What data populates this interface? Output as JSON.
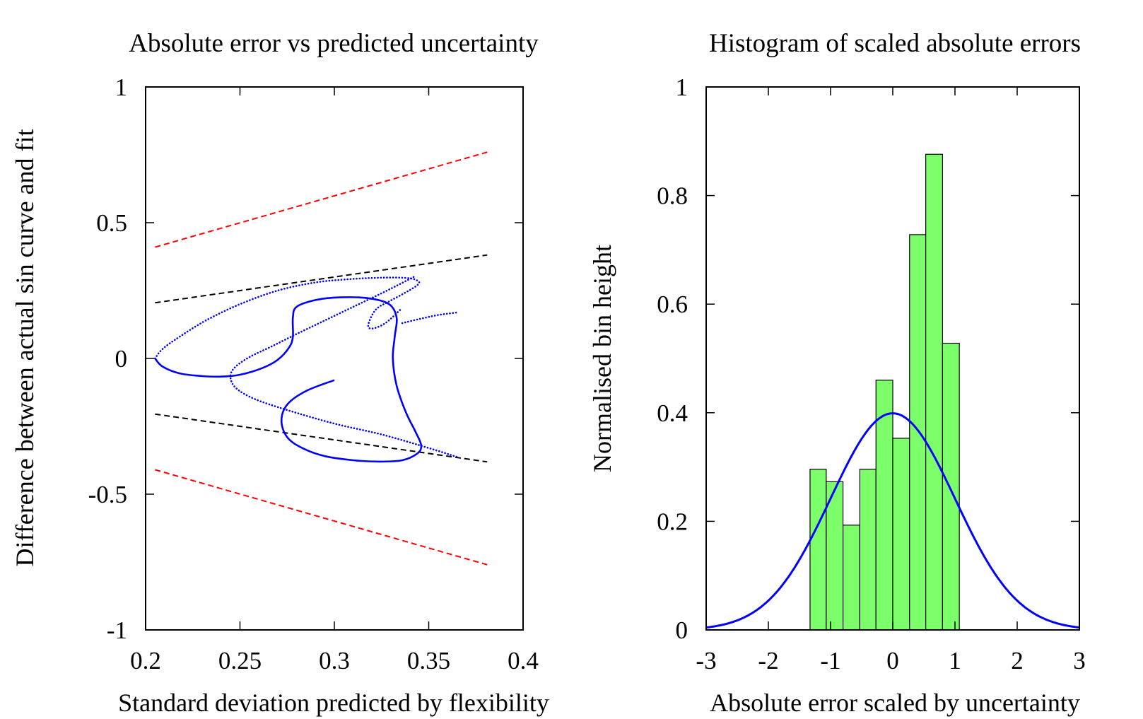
{
  "chart_data": [
    {
      "type": "line",
      "title": "Absolute error vs predicted uncertainty",
      "xlabel": "Standard deviation predicted by flexibility",
      "ylabel": "Difference between actual sin curve and fit",
      "xlim": [
        0.2,
        0.4
      ],
      "ylim": [
        -1,
        1
      ],
      "xticks": [
        "0.2",
        "0.25",
        "0.3",
        "0.35",
        "0.4"
      ],
      "yticks": [
        "-1",
        "-0.5",
        "0",
        "0.5",
        "1"
      ],
      "grid": false,
      "legend": "none",
      "lines": [
        {
          "color": "#ff0000",
          "style": "dashed",
          "x": [
            0.205,
            0.381
          ],
          "y": [
            0.41,
            0.76
          ]
        },
        {
          "color": "#ff0000",
          "style": "dashed",
          "x": [
            0.205,
            0.381
          ],
          "y": [
            -0.41,
            -0.76
          ]
        },
        {
          "color": "#000000",
          "style": "dashed",
          "x": [
            0.205,
            0.381
          ],
          "y": [
            0.205,
            0.381
          ]
        },
        {
          "color": "#000000",
          "style": "dashed",
          "x": [
            0.205,
            0.381
          ],
          "y": [
            -0.205,
            -0.381
          ]
        }
      ],
      "series": [
        {
          "color": "#0000ff",
          "style": "solid",
          "x": [
            0.205,
            0.209,
            0.218,
            0.23,
            0.24,
            0.25,
            0.262,
            0.27,
            0.276,
            0.278,
            0.278,
            0.28,
            0.29,
            0.303,
            0.318,
            0.329,
            0.333,
            0.332,
            0.331,
            0.333,
            0.338,
            0.343,
            0.346,
            0.344,
            0.336,
            0.324,
            0.31,
            0.295,
            0.283,
            0.275,
            0.272,
            0.275,
            0.285,
            0.3
          ],
          "y": [
            0.0,
            -0.03,
            -0.055,
            -0.065,
            -0.067,
            -0.06,
            -0.035,
            -0.005,
            0.04,
            0.08,
            0.15,
            0.19,
            0.215,
            0.225,
            0.222,
            0.2,
            0.15,
            0.08,
            0.0,
            -0.1,
            -0.2,
            -0.27,
            -0.32,
            -0.35,
            -0.375,
            -0.38,
            -0.375,
            -0.36,
            -0.33,
            -0.29,
            -0.23,
            -0.17,
            -0.12,
            -0.08
          ]
        },
        {
          "color": "#0000ff",
          "style": "dotted",
          "x": [
            0.205,
            0.209,
            0.218,
            0.232,
            0.25,
            0.27,
            0.29,
            0.308,
            0.322,
            0.333,
            0.34,
            0.343,
            0.345,
            0.343,
            0.337,
            0.329,
            0.322,
            0.318,
            0.32,
            0.327,
            0.335
          ],
          "y": [
            0.0,
            0.035,
            0.08,
            0.14,
            0.2,
            0.25,
            0.28,
            0.292,
            0.297,
            0.298,
            0.295,
            0.29,
            0.28,
            0.265,
            0.24,
            0.21,
            0.18,
            0.125,
            0.11,
            0.13,
            0.18
          ]
        },
        {
          "color": "#0000ff",
          "style": "dotted",
          "x": [
            0.342,
            0.335,
            0.325,
            0.31,
            0.295,
            0.28,
            0.267,
            0.255,
            0.247,
            0.245,
            0.248,
            0.258,
            0.275,
            0.3,
            0.325,
            0.35,
            0.366
          ],
          "y": [
            0.3,
            0.275,
            0.24,
            0.19,
            0.14,
            0.09,
            0.045,
            0.005,
            -0.035,
            -0.07,
            -0.11,
            -0.15,
            -0.19,
            -0.24,
            -0.28,
            -0.33,
            -0.365
          ]
        },
        {
          "color": "#0000ff",
          "style": "dotted",
          "x": [
            0.336,
            0.345,
            0.355,
            0.366
          ],
          "y": [
            0.13,
            0.145,
            0.16,
            0.17
          ]
        }
      ]
    },
    {
      "type": "bar",
      "title": "Histogram of scaled absolute errors",
      "xlabel": "Absolute error scaled by uncertainty",
      "ylabel": "Normalised bin height",
      "xlim": [
        -3,
        3
      ],
      "ylim": [
        0,
        1
      ],
      "xticks": [
        "-3",
        "-2",
        "-1",
        "0",
        "1",
        "2",
        "3"
      ],
      "yticks": [
        "0",
        "0.2",
        "0.4",
        "0.6",
        "0.8",
        "1"
      ],
      "grid": false,
      "legend": "none",
      "bar_color": "#7dff6b",
      "bins": [
        {
          "x0": -1.33,
          "x1": -1.07,
          "height": 0.296
        },
        {
          "x0": -1.07,
          "x1": -0.8,
          "height": 0.273
        },
        {
          "x0": -0.8,
          "x1": -0.53,
          "height": 0.193
        },
        {
          "x0": -0.53,
          "x1": -0.27,
          "height": 0.296
        },
        {
          "x0": -0.27,
          "x1": 0.0,
          "height": 0.46
        },
        {
          "x0": 0.0,
          "x1": 0.27,
          "height": 0.353
        },
        {
          "x0": 0.27,
          "x1": 0.53,
          "height": 0.728
        },
        {
          "x0": 0.53,
          "x1": 0.8,
          "height": 0.876
        },
        {
          "x0": 0.8,
          "x1": 1.07,
          "height": 0.528
        }
      ],
      "curve": {
        "color": "#0000ff",
        "kind": "standard normal pdf",
        "mean": 0,
        "sd": 1
      }
    }
  ]
}
